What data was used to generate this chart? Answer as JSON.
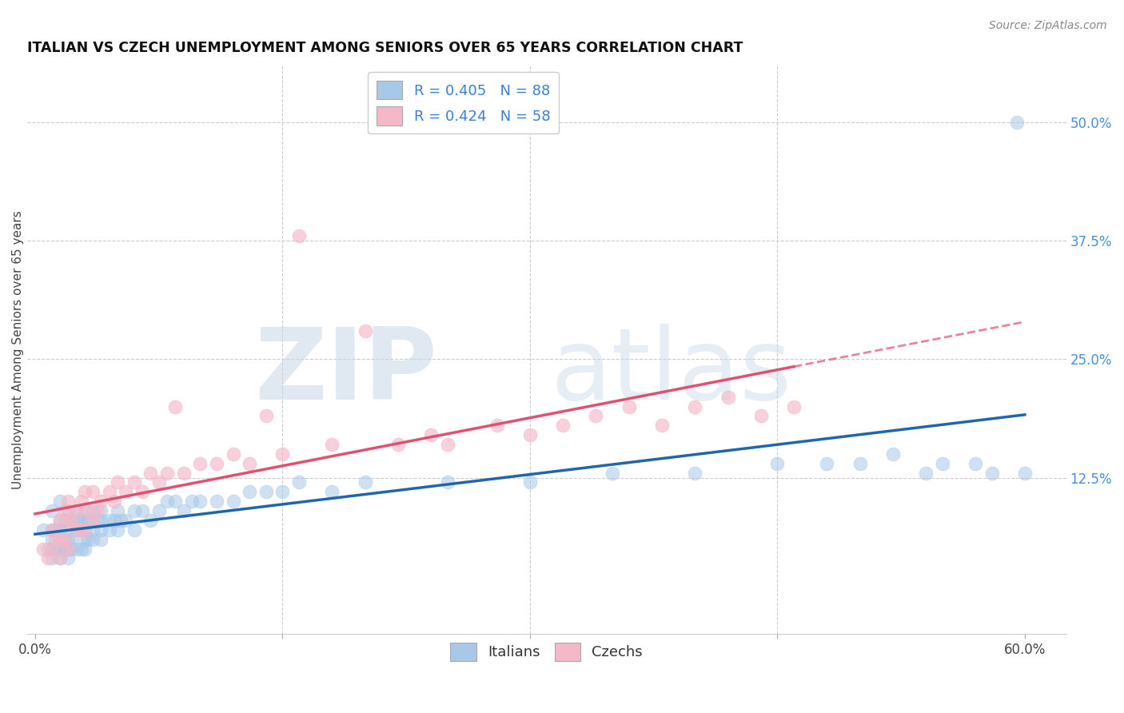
{
  "title": "ITALIAN VS CZECH UNEMPLOYMENT AMONG SENIORS OVER 65 YEARS CORRELATION CHART",
  "source": "Source: ZipAtlas.com",
  "ylabel": "Unemployment Among Seniors over 65 years",
  "xlim": [
    -0.005,
    0.625
  ],
  "ylim": [
    -0.04,
    0.56
  ],
  "xticks": [
    0.0,
    0.15,
    0.3,
    0.45,
    0.6
  ],
  "xtick_labels": [
    "0.0%",
    "",
    "",
    "",
    "60.0%"
  ],
  "ytick_labels_right": [
    "50.0%",
    "37.5%",
    "25.0%",
    "12.5%"
  ],
  "ytick_values_right": [
    0.5,
    0.375,
    0.25,
    0.125
  ],
  "italian_color": "#a8c8e8",
  "czech_color": "#f4b8c8",
  "italian_line_color": "#2166ac",
  "czech_line_color": "#e05070",
  "italian_R": 0.405,
  "italian_N": 88,
  "czech_R": 0.424,
  "czech_N": 58,
  "italian_x": [
    0.005,
    0.008,
    0.01,
    0.01,
    0.01,
    0.01,
    0.01,
    0.012,
    0.012,
    0.015,
    0.015,
    0.015,
    0.015,
    0.015,
    0.015,
    0.018,
    0.018,
    0.018,
    0.02,
    0.02,
    0.02,
    0.02,
    0.02,
    0.02,
    0.022,
    0.022,
    0.022,
    0.025,
    0.025,
    0.025,
    0.025,
    0.028,
    0.028,
    0.028,
    0.03,
    0.03,
    0.03,
    0.03,
    0.03,
    0.032,
    0.032,
    0.035,
    0.035,
    0.035,
    0.038,
    0.04,
    0.04,
    0.04,
    0.04,
    0.045,
    0.045,
    0.048,
    0.05,
    0.05,
    0.052,
    0.055,
    0.06,
    0.06,
    0.065,
    0.07,
    0.075,
    0.08,
    0.085,
    0.09,
    0.095,
    0.1,
    0.11,
    0.12,
    0.13,
    0.14,
    0.15,
    0.16,
    0.18,
    0.2,
    0.25,
    0.3,
    0.35,
    0.4,
    0.45,
    0.48,
    0.5,
    0.52,
    0.54,
    0.55,
    0.57,
    0.58,
    0.595,
    0.6
  ],
  "italian_y": [
    0.07,
    0.05,
    0.09,
    0.07,
    0.06,
    0.05,
    0.04,
    0.07,
    0.05,
    0.1,
    0.08,
    0.07,
    0.06,
    0.05,
    0.04,
    0.08,
    0.06,
    0.05,
    0.09,
    0.08,
    0.07,
    0.06,
    0.05,
    0.04,
    0.08,
    0.06,
    0.05,
    0.09,
    0.08,
    0.07,
    0.05,
    0.08,
    0.07,
    0.05,
    0.09,
    0.08,
    0.07,
    0.06,
    0.05,
    0.08,
    0.06,
    0.09,
    0.07,
    0.06,
    0.08,
    0.09,
    0.08,
    0.07,
    0.06,
    0.08,
    0.07,
    0.08,
    0.09,
    0.07,
    0.08,
    0.08,
    0.09,
    0.07,
    0.09,
    0.08,
    0.09,
    0.1,
    0.1,
    0.09,
    0.1,
    0.1,
    0.1,
    0.1,
    0.11,
    0.11,
    0.11,
    0.12,
    0.11,
    0.12,
    0.12,
    0.12,
    0.13,
    0.13,
    0.14,
    0.14,
    0.14,
    0.15,
    0.13,
    0.14,
    0.14,
    0.13,
    0.5,
    0.13
  ],
  "czech_x": [
    0.005,
    0.008,
    0.01,
    0.01,
    0.012,
    0.015,
    0.015,
    0.015,
    0.018,
    0.018,
    0.02,
    0.02,
    0.02,
    0.022,
    0.025,
    0.025,
    0.028,
    0.028,
    0.03,
    0.03,
    0.032,
    0.035,
    0.035,
    0.038,
    0.04,
    0.045,
    0.048,
    0.05,
    0.055,
    0.06,
    0.065,
    0.07,
    0.075,
    0.08,
    0.085,
    0.09,
    0.1,
    0.11,
    0.12,
    0.13,
    0.14,
    0.15,
    0.16,
    0.18,
    0.2,
    0.22,
    0.24,
    0.25,
    0.28,
    0.3,
    0.32,
    0.34,
    0.36,
    0.38,
    0.4,
    0.42,
    0.44,
    0.46
  ],
  "czech_y": [
    0.05,
    0.04,
    0.07,
    0.05,
    0.06,
    0.08,
    0.06,
    0.04,
    0.09,
    0.06,
    0.1,
    0.08,
    0.05,
    0.08,
    0.09,
    0.07,
    0.1,
    0.07,
    0.11,
    0.07,
    0.09,
    0.11,
    0.08,
    0.09,
    0.1,
    0.11,
    0.1,
    0.12,
    0.11,
    0.12,
    0.11,
    0.13,
    0.12,
    0.13,
    0.2,
    0.13,
    0.14,
    0.14,
    0.15,
    0.14,
    0.19,
    0.15,
    0.38,
    0.16,
    0.28,
    0.16,
    0.17,
    0.16,
    0.18,
    0.17,
    0.18,
    0.19,
    0.2,
    0.18,
    0.2,
    0.21,
    0.19,
    0.2
  ]
}
